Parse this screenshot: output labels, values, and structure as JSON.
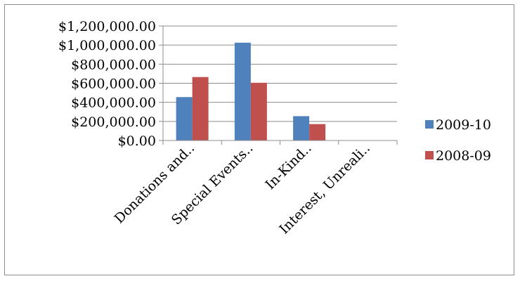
{
  "chart_data": {
    "type": "bar",
    "categories": [
      "Donations and..",
      "Special Events..",
      "In-Kind..",
      "Interest, Unreali.."
    ],
    "series": [
      {
        "name": "2009-10",
        "color": "#4f81bd",
        "values": [
          455000,
          1025000,
          255000,
          3000
        ]
      },
      {
        "name": "2008-09",
        "color": "#c0504d",
        "values": [
          665000,
          605000,
          172000,
          2000
        ]
      }
    ],
    "yticks": [
      "$0.00",
      "$200,000.00",
      "$400,000.00",
      "$600,000.00",
      "$800,000.00",
      "$1,000,000.00",
      "$1,200,000.00"
    ],
    "ylim": [
      0,
      1200000
    ],
    "grid": true,
    "legend_position": "right",
    "title": "",
    "xlabel": "",
    "ylabel": ""
  }
}
